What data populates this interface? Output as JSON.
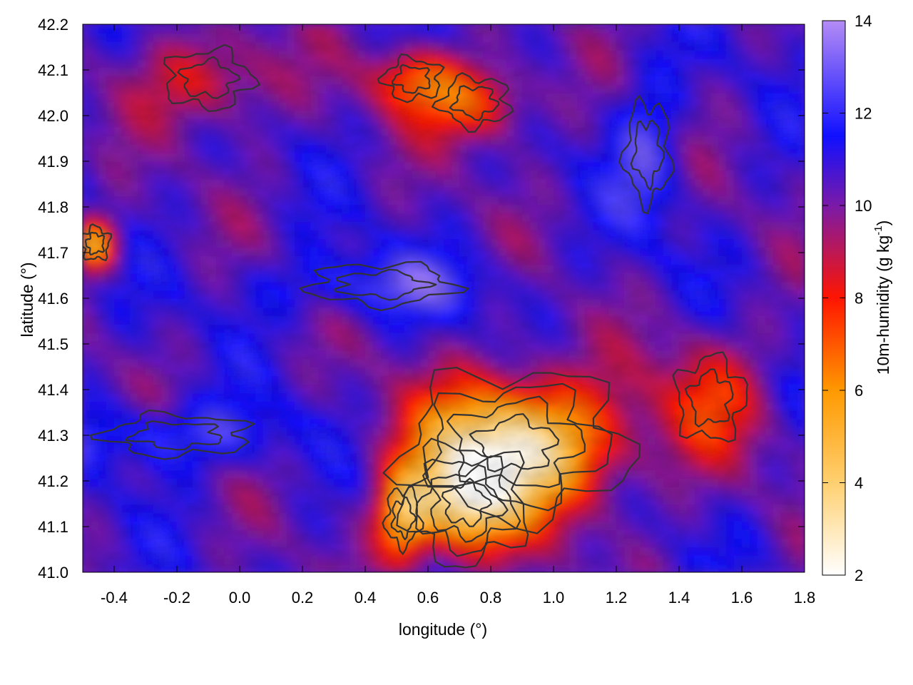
{
  "chart_data": {
    "type": "heatmap",
    "title": "",
    "xlabel": "longitude (°)",
    "ylabel": "latitude (°)",
    "xlim": [
      -0.5,
      1.8
    ],
    "ylim": [
      41.0,
      42.2
    ],
    "xticks": [
      "-0.4",
      "-0.2",
      "0.0",
      "0.2",
      "0.4",
      "0.6",
      "0.8",
      "1.0",
      "1.2",
      "1.4",
      "1.6",
      "1.8"
    ],
    "xtick_values": [
      -0.4,
      -0.2,
      0.0,
      0.2,
      0.4,
      0.6,
      0.8,
      1.0,
      1.2,
      1.4,
      1.6,
      1.8
    ],
    "yticks": [
      "41.0",
      "41.1",
      "41.2",
      "41.3",
      "41.4",
      "41.5",
      "41.6",
      "41.7",
      "41.8",
      "41.9",
      "42.0",
      "42.1",
      "42.2"
    ],
    "ytick_values": [
      41.0,
      41.1,
      41.2,
      41.3,
      41.4,
      41.5,
      41.6,
      41.7,
      41.8,
      41.9,
      42.0,
      42.1,
      42.2
    ],
    "colorbar": {
      "label": "10m-humidity (g kg",
      "label_sup": "-1",
      "label_end": ")",
      "range": [
        2,
        14
      ],
      "ticks": [
        "2",
        "4",
        "6",
        "8",
        "10",
        "12",
        "14"
      ],
      "tick_values": [
        2,
        4,
        6,
        8,
        10,
        12,
        14
      ],
      "palette": [
        {
          "value": 2,
          "color": "#ffffff"
        },
        {
          "value": 4,
          "color": "#ffd070"
        },
        {
          "value": 6,
          "color": "#ff9900"
        },
        {
          "value": 8,
          "color": "#ff1500"
        },
        {
          "value": 10,
          "color": "#7a1aa8"
        },
        {
          "value": 11.5,
          "color": "#1010ff"
        },
        {
          "value": 14,
          "color": "#b48cf5"
        }
      ]
    },
    "field_features": [
      {
        "name": "dry area south-centre",
        "lon": 0.88,
        "lat": 41.28,
        "value": 3.0,
        "spread_lon": 0.22,
        "spread_lat": 0.1
      },
      {
        "name": "dry area south",
        "lon": 0.72,
        "lat": 41.15,
        "value": 4.5,
        "spread_lon": 0.12,
        "spread_lat": 0.08
      },
      {
        "name": "dry area south-west",
        "lon": 0.52,
        "lat": 41.12,
        "value": 6.0,
        "spread_lon": 0.06,
        "spread_lat": 0.07
      },
      {
        "name": "dry area north-centre",
        "lon": 0.75,
        "lat": 42.03,
        "value": 7.0,
        "spread_lon": 0.12,
        "spread_lat": 0.06
      },
      {
        "name": "dry area north",
        "lon": 0.55,
        "lat": 42.08,
        "value": 7.5,
        "spread_lon": 0.1,
        "spread_lat": 0.05
      },
      {
        "name": "dry area west",
        "lon": -0.46,
        "lat": 41.72,
        "value": 5.5,
        "spread_lon": 0.05,
        "spread_lat": 0.04
      },
      {
        "name": "dry area east",
        "lon": 1.5,
        "lat": 41.38,
        "value": 8.0,
        "spread_lon": 0.12,
        "spread_lat": 0.1
      },
      {
        "name": "dry area north-west",
        "lon": -0.1,
        "lat": 42.08,
        "value": 8.0,
        "spread_lon": 0.15,
        "spread_lat": 0.07
      },
      {
        "name": "moist band centre",
        "lon": 0.45,
        "lat": 41.63,
        "value": 12.5,
        "spread_lon": 0.25,
        "spread_lat": 0.05
      },
      {
        "name": "moist area north-east",
        "lon": 1.3,
        "lat": 41.92,
        "value": 12.5,
        "spread_lon": 0.08,
        "spread_lat": 0.12
      },
      {
        "name": "moist area south-west",
        "lon": -0.2,
        "lat": 41.3,
        "value": 12.5,
        "spread_lon": 0.25,
        "spread_lat": 0.05
      }
    ],
    "grid": false,
    "legend": "none"
  }
}
